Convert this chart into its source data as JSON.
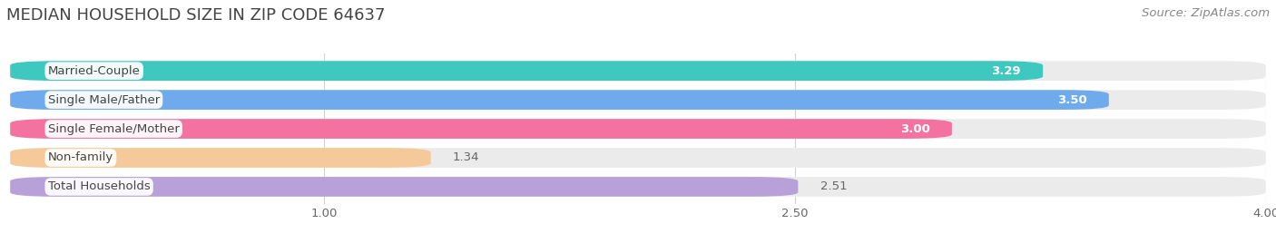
{
  "title": "MEDIAN HOUSEHOLD SIZE IN ZIP CODE 64637",
  "source": "Source: ZipAtlas.com",
  "categories": [
    "Married-Couple",
    "Single Male/Father",
    "Single Female/Mother",
    "Non-family",
    "Total Households"
  ],
  "values": [
    3.29,
    3.5,
    3.0,
    1.34,
    2.51
  ],
  "bar_colors": [
    "#3ec8c0",
    "#6eaaec",
    "#f472a0",
    "#f5c99a",
    "#b8a0d8"
  ],
  "value_inside": [
    true,
    true,
    true,
    false,
    false
  ],
  "value_label_color_inside": "#ffffff",
  "value_label_color_outside": "#666666",
  "xlim_start": 0.0,
  "xlim_end": 4.0,
  "xstart": 0.0,
  "xticks": [
    1.0,
    2.5,
    4.0
  ],
  "xtick_labels": [
    "1.00",
    "2.50",
    "4.00"
  ],
  "background_color": "#ffffff",
  "bar_bg_color": "#ebebeb",
  "bar_height": 0.68,
  "bar_gap": 0.32,
  "title_fontsize": 13,
  "source_fontsize": 9.5,
  "label_fontsize": 9.5,
  "value_fontsize": 9.5,
  "tick_fontsize": 9.5,
  "label_box_color": "#ffffff",
  "label_text_color": "#444444"
}
